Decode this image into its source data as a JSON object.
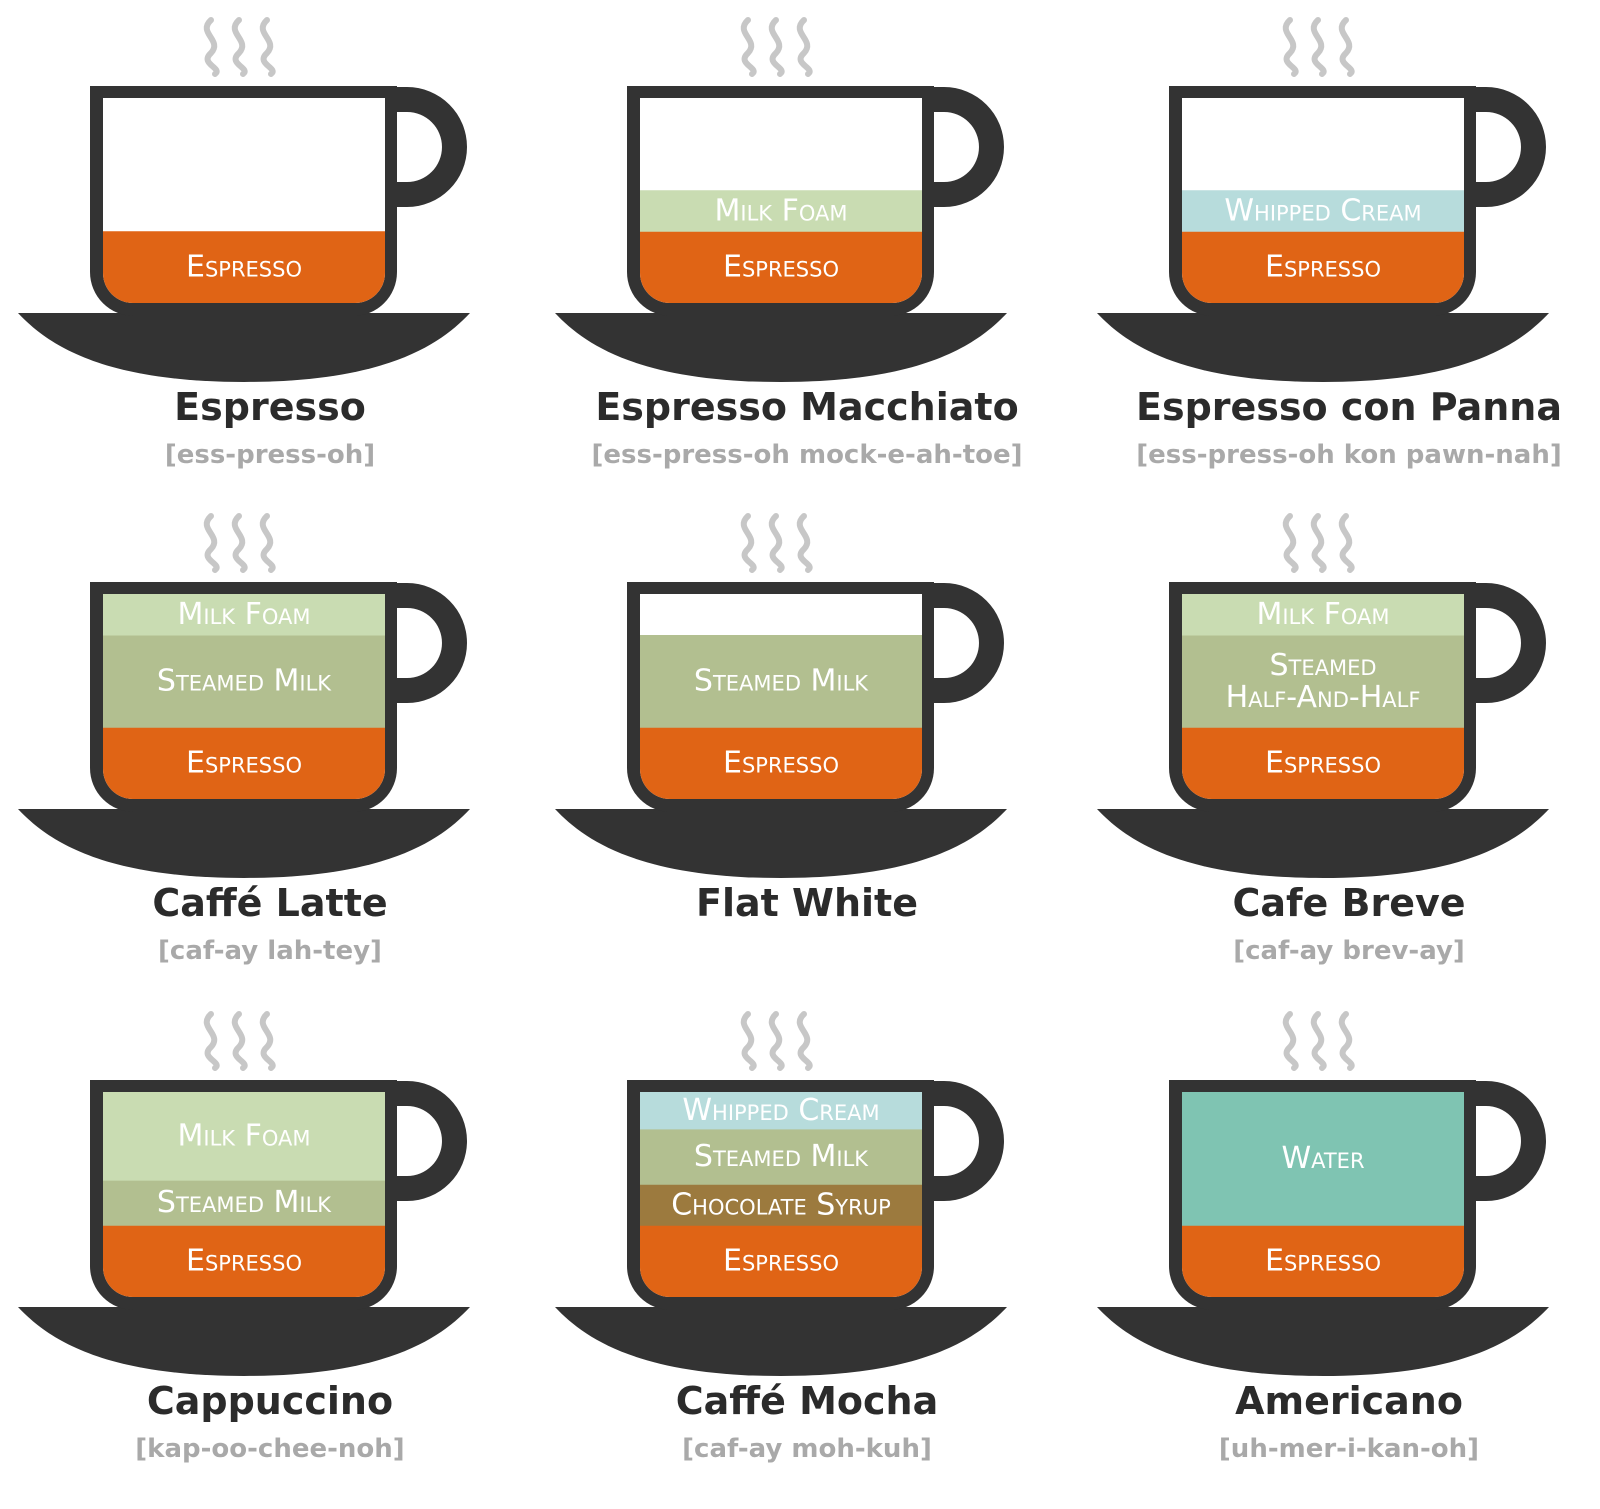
{
  "colors": {
    "cup": "#333333",
    "steam": "#c7c7c7",
    "espresso": "#e06415",
    "milk_foam": "#c9dcb2",
    "steamed_milk": "#b2bf90",
    "whipped_cream": "#b7dcdc",
    "chocolate_syrup": "#9c7a3e",
    "water": "#7fc4b2",
    "half_and_half": "#b2bf90"
  },
  "drinks": [
    {
      "name": "Espresso",
      "pronunciation": "[ess-press-oh]",
      "layers": [
        {
          "label": "Espresso",
          "color_key": "espresso",
          "fraction": 0.35
        }
      ]
    },
    {
      "name": "Espresso Macchiato",
      "pronunciation": "[ess-press-oh mock-e-ah-toe]",
      "layers": [
        {
          "label": "Espresso",
          "color_key": "espresso",
          "fraction": 0.35
        },
        {
          "label": "Milk Foam",
          "color_key": "milk_foam",
          "fraction": 0.2
        }
      ]
    },
    {
      "name": "Espresso con Panna",
      "pronunciation": "[ess-press-oh kon pawn-nah]",
      "layers": [
        {
          "label": "Espresso",
          "color_key": "espresso",
          "fraction": 0.35
        },
        {
          "label": "Whipped Cream",
          "color_key": "whipped_cream",
          "fraction": 0.2
        }
      ]
    },
    {
      "name": "Caffé Latte",
      "pronunciation": "[caf-ay lah-tey]",
      "layers": [
        {
          "label": "Espresso",
          "color_key": "espresso",
          "fraction": 0.35
        },
        {
          "label": "Steamed Milk",
          "color_key": "steamed_milk",
          "fraction": 0.45
        },
        {
          "label": "Milk Foam",
          "color_key": "milk_foam",
          "fraction": 0.2
        }
      ]
    },
    {
      "name": "Flat White",
      "pronunciation": "",
      "layers": [
        {
          "label": "Espresso",
          "color_key": "espresso",
          "fraction": 0.35
        },
        {
          "label": "Steamed Milk",
          "color_key": "steamed_milk",
          "fraction": 0.45
        }
      ]
    },
    {
      "name": "Cafe Breve",
      "pronunciation": "[caf-ay brev-ay]",
      "layers": [
        {
          "label": "Espresso",
          "color_key": "espresso",
          "fraction": 0.35
        },
        {
          "label": "Steamed Half-And-Half",
          "color_key": "half_and_half",
          "fraction": 0.45
        },
        {
          "label": "Milk Foam",
          "color_key": "milk_foam",
          "fraction": 0.2
        }
      ]
    },
    {
      "name": "Cappuccino",
      "pronunciation": "[kap-oo-chee-noh]",
      "layers": [
        {
          "label": "Espresso",
          "color_key": "espresso",
          "fraction": 0.35
        },
        {
          "label": "Steamed Milk",
          "color_key": "steamed_milk",
          "fraction": 0.22
        },
        {
          "label": "Milk Foam",
          "color_key": "milk_foam",
          "fraction": 0.43
        }
      ]
    },
    {
      "name": "Caffé  Mocha",
      "pronunciation": "[caf-ay moh-kuh]",
      "layers": [
        {
          "label": "Espresso",
          "color_key": "espresso",
          "fraction": 0.35
        },
        {
          "label": "Chocolate Syrup",
          "color_key": "chocolate_syrup",
          "fraction": 0.2
        },
        {
          "label": "Steamed Milk",
          "color_key": "steamed_milk",
          "fraction": 0.27
        },
        {
          "label": "Whipped Cream",
          "color_key": "whipped_cream",
          "fraction": 0.18
        }
      ]
    },
    {
      "name": "Americano",
      "pronunciation": "[uh-mer-i-kan-oh]",
      "layers": [
        {
          "label": "Espresso",
          "color_key": "espresso",
          "fraction": 0.35
        },
        {
          "label": "Water",
          "color_key": "water",
          "fraction": 0.65
        }
      ]
    }
  ]
}
